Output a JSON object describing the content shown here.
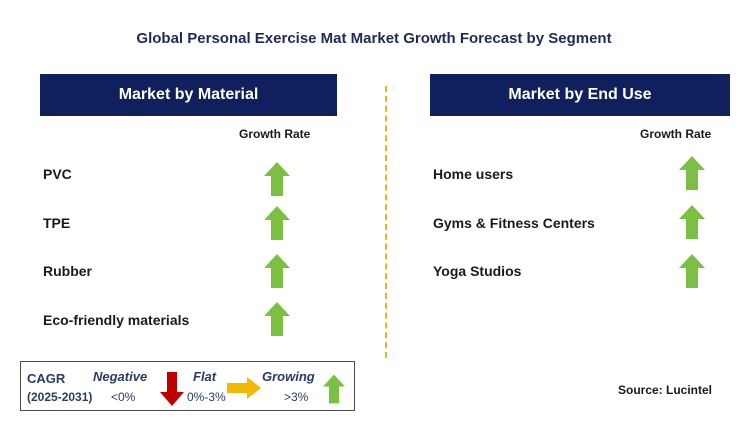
{
  "title": "Global Personal Exercise Mat Market Growth Forecast by Segment",
  "left_panel": {
    "header": "Market by Material",
    "growth_label": "Growth Rate",
    "items": [
      {
        "label": "PVC",
        "trend": "growing"
      },
      {
        "label": "TPE",
        "trend": "growing"
      },
      {
        "label": "Rubber",
        "trend": "growing"
      },
      {
        "label": "Eco-friendly materials",
        "trend": "growing"
      }
    ]
  },
  "right_panel": {
    "header": "Market by End Use",
    "growth_label": "Growth Rate",
    "items": [
      {
        "label": "Home users",
        "trend": "growing"
      },
      {
        "label": "Gyms & Fitness Centers",
        "trend": "growing"
      },
      {
        "label": "Yoga Studios",
        "trend": "growing"
      }
    ]
  },
  "legend": {
    "cagr_label": "CAGR",
    "period": "(2025-2031)",
    "negative_label": "Negative",
    "negative_value": "<0%",
    "flat_label": "Flat",
    "flat_value": "0%-3%",
    "growing_label": "Growing",
    "growing_value": ">3%"
  },
  "source": "Source: Lucintel",
  "colors": {
    "header_bg": "#10205c",
    "growing": "#7bc043",
    "negative": "#c00000",
    "flat": "#f5b800",
    "divider": "#f0b020"
  },
  "icons": {
    "growing": "green-up-arrow-icon",
    "negative": "red-down-arrow-icon",
    "flat": "yellow-right-arrow-icon"
  }
}
